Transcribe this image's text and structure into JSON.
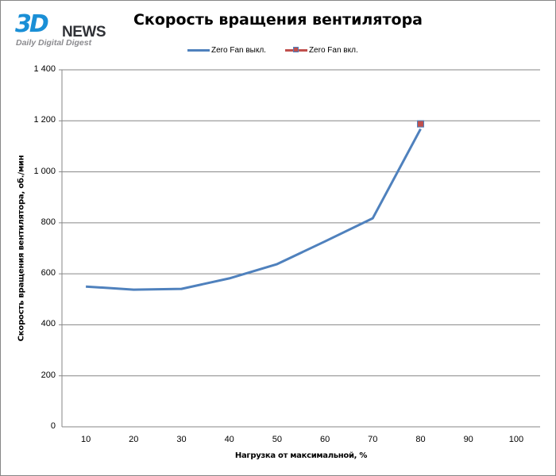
{
  "logo": {
    "mark": "3D",
    "word": "NEWS",
    "tagline": "Daily Digital Digest"
  },
  "colors": {
    "series_off": "#4f81bd",
    "series_on": "#c0504d",
    "gridline": "#868686",
    "logo_blue": "#1a8fd6"
  },
  "chart_data": {
    "type": "line",
    "title": "Скорость вращения вентилятора",
    "xlabel": "Нагрузка от максимальной, %",
    "ylabel": "Скорость вращения вентилятора, об./мин",
    "categories": [
      "10",
      "20",
      "30",
      "40",
      "50",
      "60",
      "70",
      "80",
      "90",
      "100"
    ],
    "series": [
      {
        "name": "Zero Fan выкл.",
        "color": "#4f81bd",
        "marker": "none",
        "values": [
          550,
          538,
          541,
          582,
          638,
          727,
          818,
          1168,
          null,
          null
        ]
      },
      {
        "name": "Zero Fan вкл.",
        "color": "#c0504d",
        "marker": "square",
        "values": [
          null,
          null,
          null,
          null,
          null,
          null,
          null,
          1188,
          null,
          null
        ]
      }
    ],
    "ylim": [
      0,
      1400
    ],
    "yticks": [
      "0",
      "200",
      "400",
      "600",
      "800",
      "1 000",
      "1 200",
      "1 400"
    ],
    "grid": "horizontal",
    "legend_position": "top"
  }
}
